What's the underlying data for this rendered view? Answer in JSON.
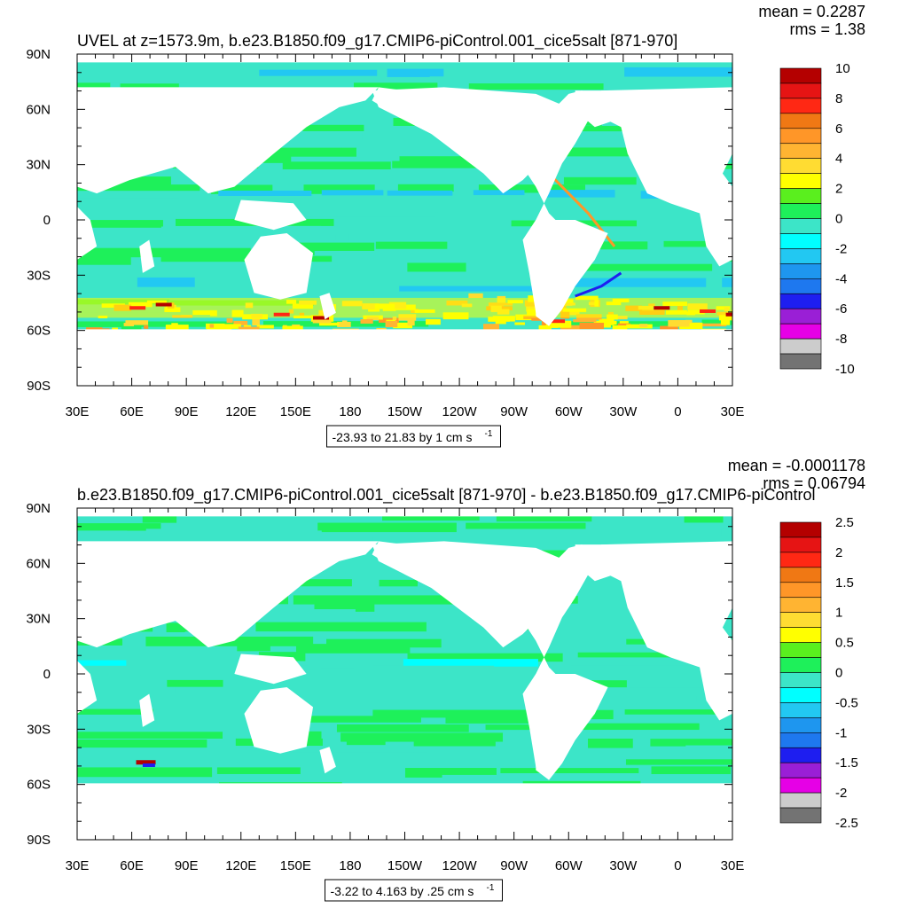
{
  "panels": [
    {
      "title": "UVEL at z=1573.9m, b.e23.B1850.f09_g17.CMIP6-piControl.001_cice5salt [871-970]",
      "mean_label": "mean = 0.2287",
      "rms_label": "rms = 1.38",
      "range_label": "-23.93 to 21.83 by 1 cm s",
      "range_sup": "-1"
    },
    {
      "title": "b.e23.B1850.f09_g17.CMIP6-piControl.001_cice5salt [871-970] - b.e23.B1850.f09_g17.CMIP6-piControl",
      "mean_label": "mean = -0.0001178",
      "rms_label": "rms = 0.06794",
      "range_label": "-3.22 to 4.163 by .25 cm s",
      "range_sup": "-1"
    }
  ],
  "colors": {
    "palette": [
      "#737373",
      "#cccccc",
      "#e600e6",
      "#9a1fd6",
      "#1e1ef0",
      "#1e78ef",
      "#1e96ef",
      "#22c8f2",
      "#00ffff",
      "#3ce5c8",
      "#1ef05a",
      "#5aef1e",
      "#ffff00",
      "#ffdc32",
      "#ffb432",
      "#ff9628",
      "#f07814",
      "#ff2814",
      "#e61414",
      "#b40000"
    ],
    "land": "#ffffff",
    "axis": "#000000"
  },
  "chart_data": [
    {
      "type": "heatmap",
      "title": "UVEL at z=1573.9m, b.e23.B1850.f09_g17.CMIP6-piControl.001_cice5salt [871-970]",
      "x_ticks": [
        "30E",
        "60E",
        "90E",
        "120E",
        "150E",
        "180",
        "150W",
        "120W",
        "90W",
        "60W",
        "30W",
        "0",
        "30E"
      ],
      "y_ticks": [
        "90N",
        "60N",
        "30N",
        "0",
        "30S",
        "60S",
        "90S"
      ],
      "colorbar_labels": [
        "10",
        "8",
        "6",
        "4",
        "2",
        "0",
        "-2",
        "-4",
        "-6",
        "-8",
        "-10"
      ],
      "colorbar_levels": [
        -10,
        -9,
        -8,
        -7,
        -6,
        -5,
        -4,
        -3,
        -2,
        -1,
        0,
        1,
        2,
        3,
        4,
        5,
        6,
        7,
        8,
        9,
        10
      ],
      "mean": 0.2287,
      "rms": 1.38,
      "range": "-23.93 to 21.83 by 1 cm s-1",
      "units": "cm s-1"
    },
    {
      "type": "heatmap",
      "title": "b.e23.B1850.f09_g17.CMIP6-piControl.001_cice5salt [871-970] - b.e23.B1850.f09_g17.CMIP6-piControl",
      "x_ticks": [
        "30E",
        "60E",
        "90E",
        "120E",
        "150E",
        "180",
        "150W",
        "120W",
        "90W",
        "60W",
        "30W",
        "0",
        "30E"
      ],
      "y_ticks": [
        "90N",
        "60N",
        "30N",
        "0",
        "30S",
        "60S",
        "90S"
      ],
      "colorbar_labels": [
        "2.5",
        "2",
        "1.5",
        "1",
        "0.5",
        "0",
        "-0.5",
        "-1",
        "-1.5",
        "-2",
        "-2.5"
      ],
      "colorbar_levels": [
        -2.5,
        -2.25,
        -2,
        -1.75,
        -1.5,
        -1.25,
        -1,
        -0.75,
        -0.5,
        -0.25,
        0,
        0.25,
        0.5,
        0.75,
        1,
        1.25,
        1.5,
        1.75,
        2,
        2.25,
        2.5
      ],
      "mean": -0.0001178,
      "rms": 0.06794,
      "range": "-3.22 to 4.163 by .25 cm s-1",
      "units": "cm s-1"
    }
  ]
}
